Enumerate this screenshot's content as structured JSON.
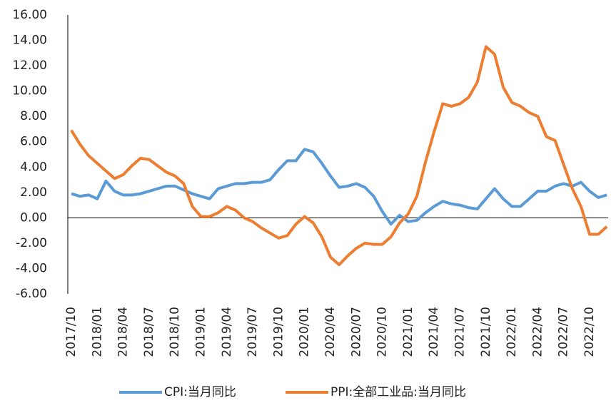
{
  "chart_data": {
    "type": "line",
    "categories": [
      "2017/10",
      null,
      null,
      "2018/01",
      null,
      null,
      "2018/04",
      null,
      null,
      "2018/07",
      null,
      null,
      "2018/10",
      null,
      null,
      "2019/01",
      null,
      null,
      "2019/04",
      null,
      null,
      "2019/07",
      null,
      null,
      "2019/10",
      null,
      null,
      "2020/01",
      null,
      null,
      "2020/04",
      null,
      null,
      "2020/07",
      null,
      null,
      "2020/10",
      null,
      null,
      "2021/01",
      null,
      null,
      "2021/04",
      null,
      null,
      "2021/07",
      null,
      null,
      "2021/10",
      null,
      null,
      "2022/01",
      null,
      null,
      "2022/04",
      null,
      null,
      "2022/07",
      null,
      null,
      "2022/10",
      null,
      null
    ],
    "series": [
      {
        "name": "CPI:当月同比",
        "color": "#5b9bd5",
        "values": [
          1.9,
          1.7,
          1.8,
          1.5,
          2.9,
          2.1,
          1.8,
          1.8,
          1.9,
          2.1,
          2.3,
          2.5,
          2.5,
          2.2,
          1.9,
          1.7,
          1.5,
          2.3,
          2.5,
          2.7,
          2.7,
          2.8,
          2.8,
          3.0,
          3.8,
          4.5,
          4.5,
          5.4,
          5.2,
          4.3,
          3.3,
          2.4,
          2.5,
          2.7,
          2.4,
          1.7,
          0.5,
          -0.5,
          0.2,
          -0.3,
          -0.2,
          0.4,
          0.9,
          1.3,
          1.1,
          1.0,
          0.8,
          0.7,
          1.5,
          2.3,
          1.5,
          0.9,
          0.9,
          1.5,
          2.1,
          2.1,
          2.5,
          2.7,
          2.5,
          2.8,
          2.1,
          1.6,
          1.8
        ]
      },
      {
        "name": "PPI:全部工业品:当月同比",
        "color": "#ed7d31",
        "values": [
          6.9,
          5.8,
          4.9,
          4.3,
          3.7,
          3.1,
          3.4,
          4.1,
          4.7,
          4.6,
          4.1,
          3.6,
          3.3,
          2.7,
          0.9,
          0.1,
          0.1,
          0.4,
          0.9,
          0.6,
          0.0,
          -0.3,
          -0.8,
          -1.2,
          -1.6,
          -1.4,
          -0.5,
          0.1,
          -0.4,
          -1.5,
          -3.1,
          -3.7,
          -3.0,
          -2.4,
          -2.0,
          -2.1,
          -2.1,
          -1.5,
          -0.4,
          0.3,
          1.7,
          4.4,
          6.8,
          9.0,
          8.8,
          9.0,
          9.5,
          10.7,
          13.5,
          12.9,
          10.3,
          9.1,
          8.8,
          8.3,
          8.0,
          6.4,
          6.1,
          4.2,
          2.3,
          0.9,
          -1.3,
          -1.3,
          -0.7
        ]
      }
    ],
    "ylim": [
      -6,
      16
    ],
    "yticks": [
      {
        "value": -6,
        "label": "-6.00"
      },
      {
        "value": -4,
        "label": "-4.00"
      },
      {
        "value": -2,
        "label": "-2.00"
      },
      {
        "value": 0,
        "label": "0.00"
      },
      {
        "value": 2,
        "label": "2.00"
      },
      {
        "value": 4,
        "label": "4.00"
      },
      {
        "value": 6,
        "label": "6.00"
      },
      {
        "value": 8,
        "label": "8.00"
      },
      {
        "value": 10,
        "label": "10.00"
      },
      {
        "value": 12,
        "label": "12.00"
      },
      {
        "value": 14,
        "label": "14.00"
      },
      {
        "value": 16,
        "label": "16.00"
      }
    ],
    "grid": false,
    "legend": "bottom"
  }
}
